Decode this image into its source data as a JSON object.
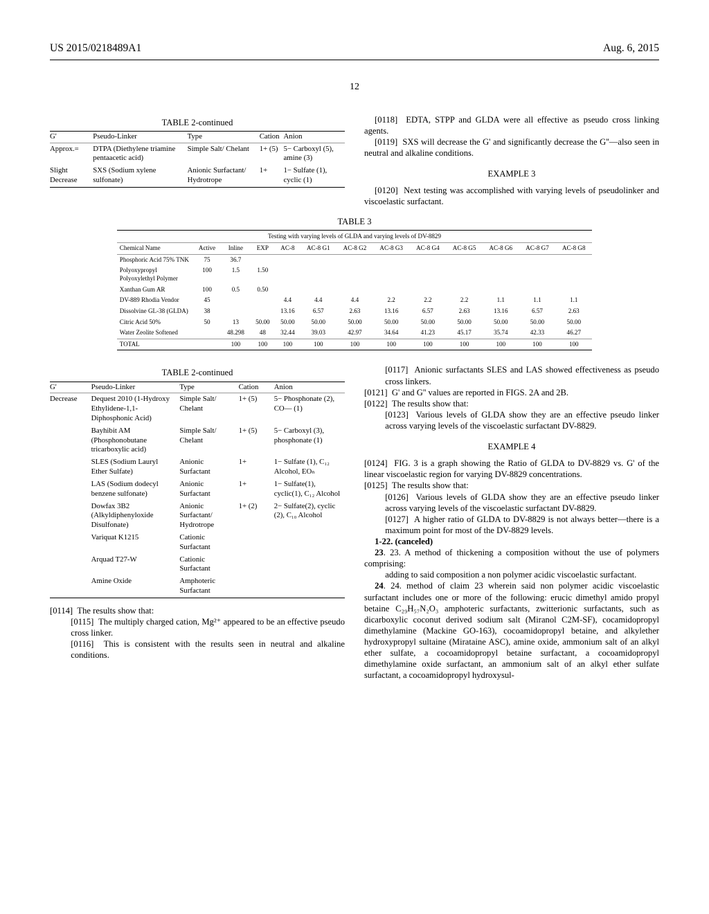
{
  "header": {
    "pubnum": "US 2015/0218489A1",
    "date": "Aug. 6, 2015",
    "pagenum": "12"
  },
  "table2a": {
    "title": "TABLE 2-continued",
    "cols": [
      "G'",
      "Pseudo-Linker",
      "Type",
      "Cation",
      "Anion"
    ],
    "rows": [
      [
        "Approx.=",
        "DTPA (Diethylene triamine pentaacetic acid)",
        "Simple Salt/ Chelant",
        "1+ (5)",
        "5− Carboxyl (5), amine (3)"
      ],
      [
        "Slight Decrease",
        "SXS (Sodium xylene sulfonate)",
        "Anionic Surfactant/ Hydrotrope",
        "1+",
        "1− Sulfate (1), cyclic (1)"
      ]
    ]
  },
  "rcol_top": {
    "p0118": "EDTA, STPP and GLDA were all effective as pseudo cross linking agents.",
    "p0119": "SXS will decrease the G' and significantly decrease the G''—also seen in neutral and alkaline conditions.",
    "ex3": "EXAMPLE 3",
    "p0120": "Next testing was accomplished with varying levels of pseudolinker and viscoelastic surfactant."
  },
  "table3": {
    "title": "TABLE 3",
    "caption": "Testing with varying levels of GLDA and varying levels of DV-8829",
    "cols": [
      "Chemical Name",
      "Active",
      "Inline",
      "EXP",
      "AC-8",
      "AC-8 G1",
      "AC-8 G2",
      "AC-8 G3",
      "AC-8 G4",
      "AC-8 G5",
      "AC-8 G6",
      "AC-8 G7",
      "AC-8 G8"
    ],
    "rows": [
      [
        "Phosphoric Acid 75% TNK",
        "75",
        "36.7",
        "",
        "",
        "",
        "",
        "",
        "",
        "",
        "",
        "",
        ""
      ],
      [
        "Polyoxypropyl Polyoxylethyl Polymer",
        "100",
        "1.5",
        "1.50",
        "",
        "",
        "",
        "",
        "",
        "",
        "",
        "",
        ""
      ],
      [
        "Xanthan Gum AR",
        "100",
        "0.5",
        "0.50",
        "",
        "",
        "",
        "",
        "",
        "",
        "",
        "",
        ""
      ],
      [
        "DV-889 Rhodia Vendor",
        "45",
        "",
        "",
        "4.4",
        "4.4",
        "4.4",
        "2.2",
        "2.2",
        "2.2",
        "1.1",
        "1.1",
        "1.1"
      ],
      [
        "Dissolvine GL-38 (GLDA)",
        "38",
        "",
        "",
        "13.16",
        "6.57",
        "2.63",
        "13.16",
        "6.57",
        "2.63",
        "13.16",
        "6.57",
        "2.63"
      ],
      [
        "Citric Acid 50%",
        "50",
        "13",
        "50.00",
        "50.00",
        "50.00",
        "50.00",
        "50.00",
        "50.00",
        "50.00",
        "50.00",
        "50.00",
        "50.00"
      ],
      [
        "Water Zeolite Softened",
        "",
        "48.298",
        "48",
        "32.44",
        "39.03",
        "42.97",
        "34.64",
        "41.23",
        "45.17",
        "35.74",
        "42.33",
        "46.27"
      ]
    ],
    "total": [
      "TOTAL",
      "",
      "100",
      "100",
      "100",
      "100",
      "100",
      "100",
      "100",
      "100",
      "100",
      "100",
      "100"
    ]
  },
  "table2b": {
    "title": "TABLE 2-continued",
    "cols": [
      "G'",
      "Pseudo-Linker",
      "Type",
      "Cation",
      "Anion"
    ],
    "rows": [
      [
        "Decrease",
        "Dequest 2010 (1-Hydroxy Ethylidene-1,1-Diphosphonic Acid)",
        "Simple Salt/ Chelant",
        "1+ (5)",
        "5− Phosphonate (2), CO— (1)"
      ],
      [
        "",
        "Bayhibit AM (Phosphonobutane tricarboxylic acid)",
        "Simple Salt/ Chelant",
        "1+ (5)",
        "5− Carboxyl (3), phosphonate (1)"
      ],
      [
        "",
        "SLES (Sodium Lauryl Ether Sulfate)",
        "Anionic Surfactant",
        "1+",
        "1− Sulfate (1), C₁₂ Alcohol, EOₙ"
      ],
      [
        "",
        "LAS (Sodium dodecyl benzene sulfonate)",
        "Anionic Surfactant",
        "1+",
        "1− Sulfate(1), cyclic(1), C₁₂ Alcohol"
      ],
      [
        "",
        "Dowfax 3B2 (Alkyldiphenyloxide Disulfonate)",
        "Anionic Surfactant/ Hydrotrope",
        "1+ (2)",
        "2− Sulfate(2), cyclic (2), C₁₀ Alcohol"
      ],
      [
        "",
        "Variquat K1215",
        "Cationic Surfactant",
        "",
        ""
      ],
      [
        "",
        "Arquad T27-W",
        "Cationic Surfactant",
        "",
        ""
      ],
      [
        "",
        "Amine Oxide",
        "Amphoteric Surfactant",
        "",
        ""
      ]
    ]
  },
  "leftparas": {
    "p0114": "The results show that:",
    "p0115": "The multiply charged cation, Mg²⁺ appeared to be an effective pseudo cross linker.",
    "p0116": "This is consistent with the results seen in neutral and alkaline conditions.",
    "p0117": "Anionic surfactants SLES and LAS showed effectiveness as pseudo cross linkers."
  },
  "rightparas": {
    "p0121": "G' and G'' values are reported in FIGS. 2A and 2B.",
    "p0122": "The results show that:",
    "p0123": "Various levels of GLDA show they are an effective pseudo linker across varying levels of the viscoelastic surfactant DV-8829.",
    "ex4": "EXAMPLE 4",
    "p0124": "FIG. 3 is a graph showing the Ratio of GLDA to DV-8829 vs. G' of the linear viscoelastic region for varying DV-8829 concentrations.",
    "p0125": "The results show that:",
    "p0126": "Various levels of GLDA show they are an effective pseudo linker across varying levels of the viscoelastic surfactant DV-8829.",
    "p0127": "A higher ratio of GLDA to DV-8829 is not always better—there is a maximum point for most of the DV-8829 levels.",
    "claims122": "1-22. (canceled)",
    "claim23a": "23. A method of thickening a composition without the use of polymers comprising:",
    "claim23b": "adding to said composition a non polymer acidic viscoelastic surfactant.",
    "claim24": "24. method of claim 23 wherein said non polymer acidic viscoelastic surfactant includes one or more of the following: erucic dimethyl amido propyl betaine C₂₉H₅₇N₂O₃ amphoteric surfactants, zwitterionic surfactants, such as dicarboxylic coconut derived sodium salt (Miranol C2M-SF), cocamidopropyl dimethylamine (Mackine GO-163), cocoamidopropyl betaine, and alkylether hydroxypropyl sultaine (Mirataine ASC), amine oxide, ammonium salt of an alkyl ether sulfate, a cocoamidopropyl betaine surfactant, a cocoamidopropyl dimethylamine oxide surfactant, an ammonium salt of an alkyl ether sulfate surfactant, a cocoamidopropyl hydroxysul-"
  }
}
